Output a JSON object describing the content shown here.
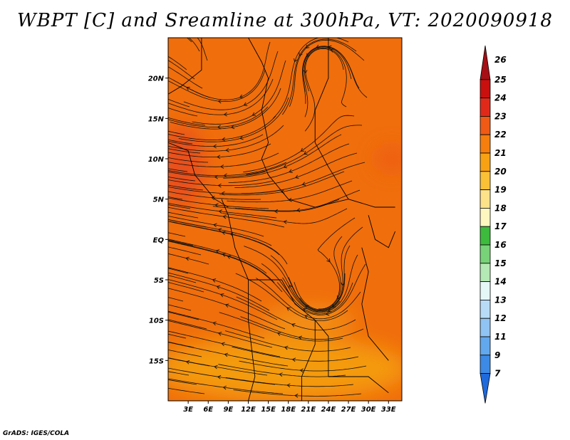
{
  "title": "WBPT [C] and Sreamline at 300hPa, VT: 2020090918",
  "credit": "GrADS: IGES/COLA",
  "map": {
    "lon_range": [
      0,
      35
    ],
    "lat_range": [
      -20,
      25
    ],
    "x_ticks": [
      {
        "lon": 3,
        "label": "3E"
      },
      {
        "lon": 6,
        "label": "6E"
      },
      {
        "lon": 9,
        "label": "9E"
      },
      {
        "lon": 12,
        "label": "12E"
      },
      {
        "lon": 15,
        "label": "15E"
      },
      {
        "lon": 18,
        "label": "18E"
      },
      {
        "lon": 21,
        "label": "21E"
      },
      {
        "lon": 24,
        "label": "24E"
      },
      {
        "lon": 27,
        "label": "27E"
      },
      {
        "lon": 30,
        "label": "30E"
      },
      {
        "lon": 33,
        "label": "33E"
      }
    ],
    "y_ticks": [
      {
        "lat": 20,
        "label": "20N"
      },
      {
        "lat": 15,
        "label": "15N"
      },
      {
        "lat": 10,
        "label": "10N"
      },
      {
        "lat": 5,
        "label": "5N"
      },
      {
        "lat": 0,
        "label": "EQ"
      },
      {
        "lat": -5,
        "label": "5S"
      },
      {
        "lat": -10,
        "label": "10S"
      },
      {
        "lat": -15,
        "label": "15S"
      }
    ],
    "background_color": "#f06e0c",
    "regions": [
      {
        "name": "warm-west",
        "color": "#e8501a",
        "lon": 2,
        "lat": 9,
        "rx": 3.5,
        "ry": 5
      },
      {
        "name": "warm-east",
        "color": "#ee5c18",
        "lon": 33.5,
        "lat": 10,
        "rx": 2.5,
        "ry": 1.5
      },
      {
        "name": "cool-south",
        "color": "#f49a10",
        "lon": 17,
        "lat": -16,
        "rx": 19,
        "ry": 4
      },
      {
        "name": "cool-vortex",
        "color": "#f39018",
        "lon": 21,
        "lat": -10,
        "rx": 7,
        "ry": 1.6
      }
    ],
    "vortices": [
      {
        "lon": 10,
        "lat": 21,
        "sense": "cw"
      },
      {
        "lon": 23,
        "lat": 22,
        "sense": "ccw"
      },
      {
        "lon": 23,
        "lat": -7,
        "sense": "cw"
      }
    ]
  },
  "colorbar": {
    "levels": [
      {
        "label": "26",
        "color": "#a50f15"
      },
      {
        "label": "25",
        "color": "#c9100f"
      },
      {
        "label": "24",
        "color": "#e1291a"
      },
      {
        "label": "23",
        "color": "#f05a14"
      },
      {
        "label": "22",
        "color": "#f57e0c"
      },
      {
        "label": "21",
        "color": "#f7a113"
      },
      {
        "label": "20",
        "color": "#fac036"
      },
      {
        "label": "19",
        "color": "#fde28a"
      },
      {
        "label": "18",
        "color": "#fff7c0"
      },
      {
        "label": "17",
        "color": "#3cbb3c"
      },
      {
        "label": "16",
        "color": "#78d278"
      },
      {
        "label": "15",
        "color": "#b4e8b4"
      },
      {
        "label": "14",
        "color": "#e6f7f7"
      },
      {
        "label": "13",
        "color": "#b8dcf8"
      },
      {
        "label": "12",
        "color": "#90c4f4"
      },
      {
        "label": "11",
        "color": "#62a8ee"
      },
      {
        "label": "9",
        "color": "#3c8ae6"
      },
      {
        "label": "7",
        "color": "#1f6adc"
      }
    ]
  }
}
